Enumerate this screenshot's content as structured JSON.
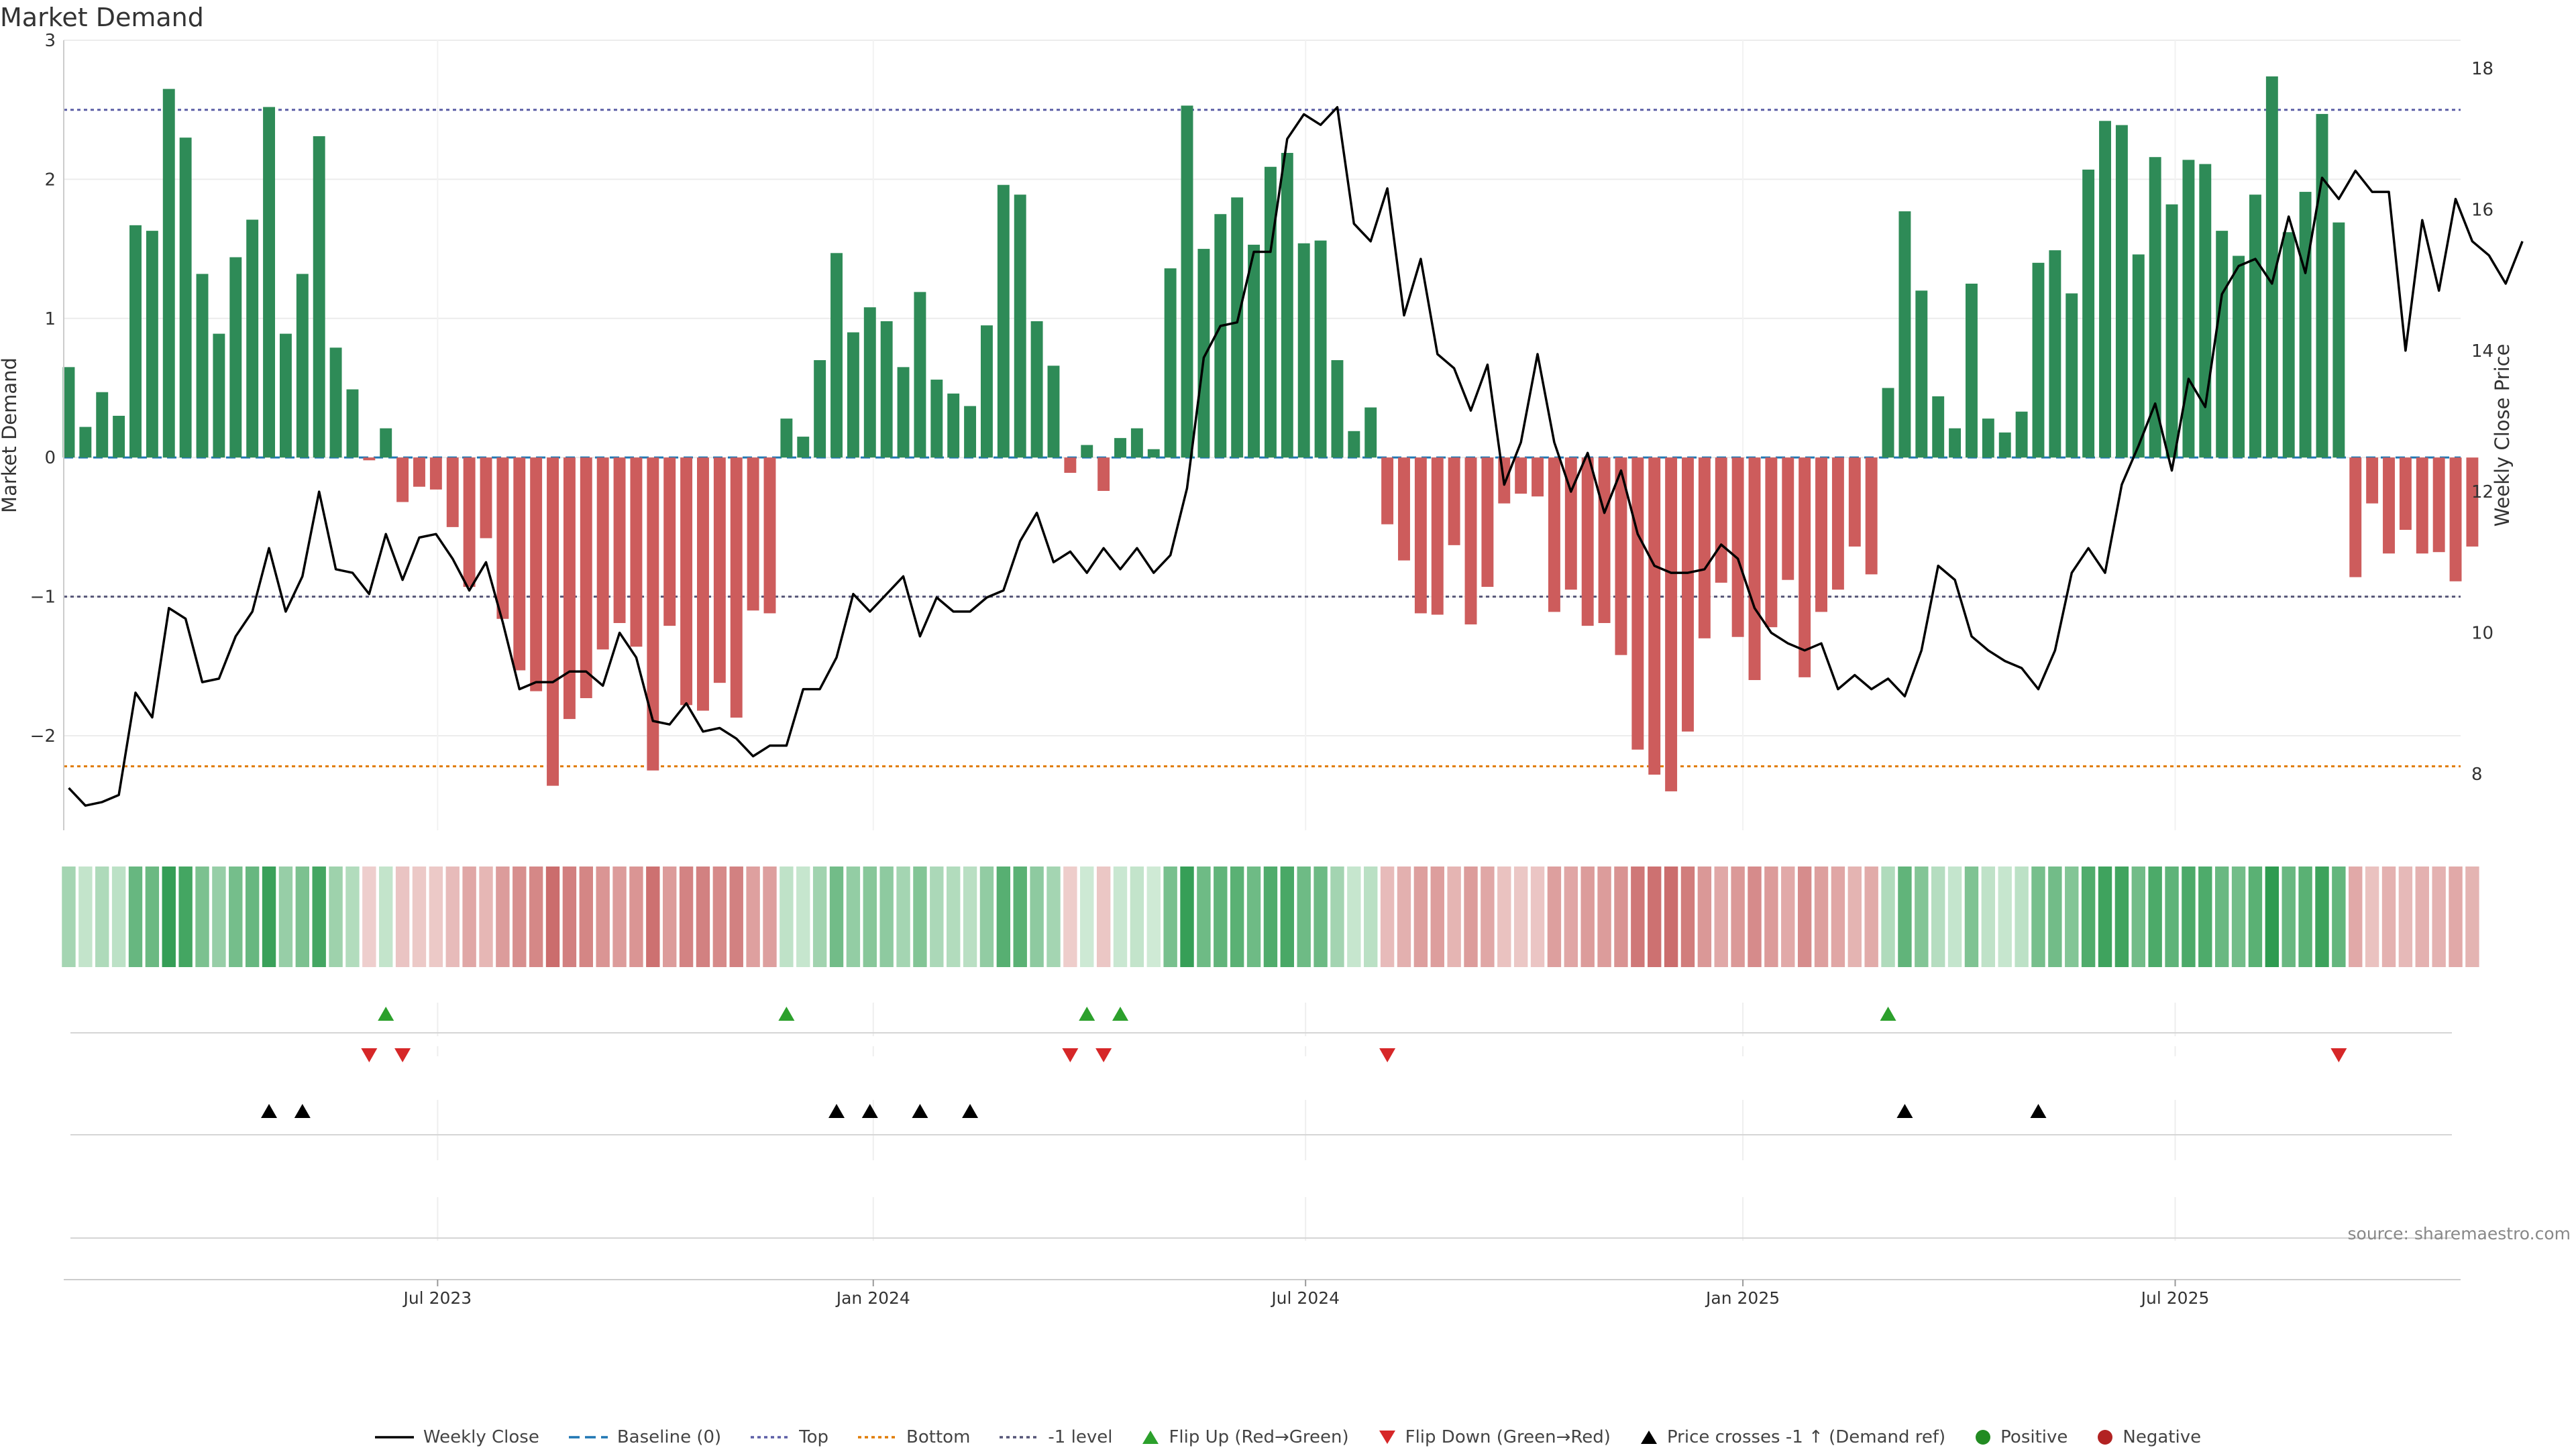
{
  "title": "Market Demand",
  "source": "source: sharemaestro.com",
  "colors": {
    "positive": "#2e8b57",
    "negative": "#cd5c5c",
    "price_line": "#000000",
    "baseline": "#1f77b4",
    "top": "#5b5ea6",
    "bottom": "#e07b00",
    "minus1": "#555577",
    "flip_up": "#2ca02c",
    "flip_down": "#d62728",
    "price_cross": "#000000",
    "dot_positive": "#228b22",
    "dot_negative": "#b22222"
  },
  "legend": [
    {
      "key": "weekly_close",
      "label": "Weekly Close",
      "icon": "line-solid-icon"
    },
    {
      "key": "baseline",
      "label": "Baseline (0)",
      "icon": "line-dashed-icon"
    },
    {
      "key": "top",
      "label": "Top",
      "icon": "line-dotted-icon"
    },
    {
      "key": "bottom",
      "label": "Bottom",
      "icon": "line-dotted-icon"
    },
    {
      "key": "minus1",
      "label": "-1 level",
      "icon": "line-dotted-icon"
    },
    {
      "key": "flip_up",
      "label": "Flip Up (Red→Green)",
      "icon": "triangle-up-icon"
    },
    {
      "key": "flip_down",
      "label": "Flip Down (Green→Red)",
      "icon": "triangle-down-icon"
    },
    {
      "key": "price_cross",
      "label": "Price crosses -1 ↑ (Demand ref)",
      "icon": "triangle-up-icon"
    },
    {
      "key": "positive",
      "label": "Positive",
      "icon": "dot-icon"
    },
    {
      "key": "negative",
      "label": "Negative",
      "icon": "dot-icon"
    }
  ],
  "chart_data": {
    "type": "bar",
    "title": "Market Demand",
    "ylabel": "Market Demand",
    "y2label": "Weekly Close Price",
    "ylim": [
      -2.68,
      3.0
    ],
    "y2lim": [
      7.2,
      18.4
    ],
    "yticks": [
      3,
      2,
      1,
      0,
      -1,
      -2
    ],
    "ytick_labels": [
      "3",
      "2",
      "1",
      "0",
      "−1",
      "−2"
    ],
    "y2ticks": [
      18,
      16,
      14,
      12,
      10,
      8
    ],
    "y2tick_labels": [
      "18",
      "16",
      "14",
      "12",
      "10",
      "8"
    ],
    "xlim": [
      -0.3,
      143.3
    ],
    "xticks": [
      22.1,
      48.2,
      74.1,
      100.3,
      126.2
    ],
    "xtick_labels": [
      "Jul 2023",
      "Jan 2024",
      "Jul 2024",
      "Jan 2025",
      "Jul 2025"
    ],
    "reference_lines": {
      "baseline": 0,
      "top": 2.5,
      "bottom": -2.22,
      "minus1": -1
    },
    "demand": [
      0.65,
      0.22,
      0.47,
      0.3,
      1.67,
      1.63,
      2.65,
      2.3,
      1.32,
      0.89,
      1.44,
      1.71,
      2.52,
      0.89,
      1.32,
      2.31,
      0.79,
      0.49,
      -0.02,
      0.21,
      -0.32,
      -0.21,
      -0.23,
      -0.5,
      -0.93,
      -0.58,
      -1.16,
      -1.53,
      -1.68,
      -2.36,
      -1.88,
      -1.73,
      -1.38,
      -1.19,
      -1.36,
      -2.25,
      -1.21,
      -1.78,
      -1.82,
      -1.62,
      -1.87,
      -1.1,
      -1.12,
      0.28,
      0.15,
      0.7,
      1.47,
      0.9,
      1.08,
      0.98,
      0.65,
      1.19,
      0.56,
      0.46,
      0.37,
      0.95,
      1.96,
      1.89,
      0.98,
      0.66,
      -0.11,
      0.09,
      -0.24,
      0.14,
      0.21,
      0.06,
      1.36,
      2.53,
      1.5,
      1.75,
      1.87,
      1.53,
      2.09,
      2.19,
      1.54,
      1.56,
      0.7,
      0.19,
      0.36,
      -0.48,
      -0.74,
      -1.12,
      -1.13,
      -0.63,
      -1.2,
      -0.93,
      -0.33,
      -0.26,
      -0.28,
      -1.11,
      -0.95,
      -1.21,
      -1.19,
      -1.42,
      -2.1,
      -2.28,
      -2.4,
      -1.97,
      -1.3,
      -0.9,
      -1.29,
      -1.6,
      -1.22,
      -0.88,
      -1.58,
      -1.11,
      -0.95,
      -0.64,
      -0.84,
      0.5,
      1.77,
      1.2,
      0.44,
      0.21,
      1.25,
      0.28,
      0.18,
      0.33,
      1.4,
      1.49,
      1.18,
      2.07,
      2.42,
      2.39,
      1.46,
      2.16,
      1.82,
      2.14,
      2.11,
      1.63,
      1.45,
      1.89,
      2.74,
      1.62,
      1.91,
      2.47,
      1.69,
      -0.86,
      -0.33,
      -0.69,
      -0.52,
      -0.69,
      -0.68,
      -0.89,
      -0.64
    ],
    "weekly_close": [
      7.8,
      7.55,
      7.6,
      7.7,
      9.15,
      8.8,
      10.35,
      10.2,
      9.3,
      9.35,
      9.95,
      10.3,
      11.2,
      10.3,
      10.8,
      12.0,
      10.9,
      10.85,
      10.55,
      11.4,
      10.75,
      11.35,
      11.4,
      11.05,
      10.6,
      11.0,
      10.15,
      9.2,
      9.3,
      9.3,
      9.45,
      9.45,
      9.25,
      10.0,
      9.65,
      8.75,
      8.7,
      9.0,
      8.6,
      8.65,
      8.5,
      8.25,
      8.4,
      8.4,
      9.2,
      9.2,
      9.65,
      10.55,
      10.3,
      10.55,
      10.8,
      9.95,
      10.5,
      10.3,
      10.3,
      10.5,
      10.6,
      11.3,
      11.7,
      11.0,
      11.15,
      10.85,
      11.2,
      10.9,
      11.2,
      10.85,
      11.1,
      12.05,
      13.9,
      14.35,
      14.4,
      15.4,
      15.4,
      17.0,
      17.35,
      17.2,
      17.45,
      15.8,
      15.55,
      16.3,
      14.5,
      15.3,
      13.95,
      13.75,
      13.15,
      13.8,
      12.1,
      12.7,
      13.95,
      12.7,
      12.0,
      12.55,
      11.7,
      12.3,
      11.4,
      10.95,
      10.85,
      10.85,
      10.9,
      11.25,
      11.05,
      10.35,
      10.0,
      9.85,
      9.75,
      9.85,
      9.2,
      9.4,
      9.2,
      9.35,
      9.1,
      9.75,
      10.95,
      10.75,
      9.95,
      9.75,
      9.6,
      9.5,
      9.2,
      9.75,
      10.85,
      11.2,
      10.85,
      12.1,
      12.65,
      13.25,
      12.3,
      13.6,
      13.2,
      14.8,
      15.2,
      15.3,
      14.95,
      15.9,
      15.1,
      16.45,
      16.15,
      16.55,
      16.25,
      16.25,
      14.0,
      15.85,
      14.85,
      16.15,
      15.55,
      15.35,
      14.95,
      15.55
    ],
    "heat_intensity": [
      0.3,
      0.12,
      0.24,
      0.16,
      0.66,
      0.64,
      0.96,
      0.87,
      0.54,
      0.38,
      0.58,
      0.66,
      0.93,
      0.38,
      0.54,
      0.87,
      0.34,
      0.22,
      0.05,
      0.12,
      0.14,
      0.1,
      0.1,
      0.22,
      0.4,
      0.26,
      0.5,
      0.62,
      0.68,
      0.92,
      0.75,
      0.7,
      0.56,
      0.5,
      0.56,
      0.88,
      0.5,
      0.72,
      0.74,
      0.66,
      0.74,
      0.46,
      0.47,
      0.14,
      0.1,
      0.32,
      0.6,
      0.4,
      0.47,
      0.43,
      0.3,
      0.5,
      0.26,
      0.22,
      0.18,
      0.41,
      0.76,
      0.74,
      0.43,
      0.3,
      0.06,
      0.06,
      0.12,
      0.08,
      0.12,
      0.05,
      0.56,
      0.95,
      0.62,
      0.7,
      0.74,
      0.62,
      0.8,
      0.84,
      0.62,
      0.63,
      0.31,
      0.1,
      0.17,
      0.22,
      0.32,
      0.47,
      0.48,
      0.28,
      0.5,
      0.4,
      0.16,
      0.12,
      0.13,
      0.47,
      0.41,
      0.5,
      0.5,
      0.58,
      0.82,
      0.88,
      0.92,
      0.78,
      0.54,
      0.39,
      0.53,
      0.65,
      0.51,
      0.38,
      0.64,
      0.47,
      0.41,
      0.29,
      0.37,
      0.23,
      0.7,
      0.5,
      0.2,
      0.11,
      0.52,
      0.14,
      0.1,
      0.16,
      0.57,
      0.6,
      0.5,
      0.8,
      0.9,
      0.89,
      0.6,
      0.82,
      0.71,
      0.82,
      0.81,
      0.65,
      0.59,
      0.74,
      1.0,
      0.65,
      0.74,
      0.92,
      0.68,
      0.38,
      0.16,
      0.31,
      0.24,
      0.31,
      0.3,
      0.38,
      0.29
    ],
    "flip_up_weeks": [
      19,
      43,
      61,
      63,
      109
    ],
    "flip_down_weeks": [
      18,
      20,
      60,
      62,
      79,
      136
    ],
    "price_cross_weeks": [
      12,
      14,
      46,
      48,
      51,
      54,
      110,
      118
    ]
  }
}
